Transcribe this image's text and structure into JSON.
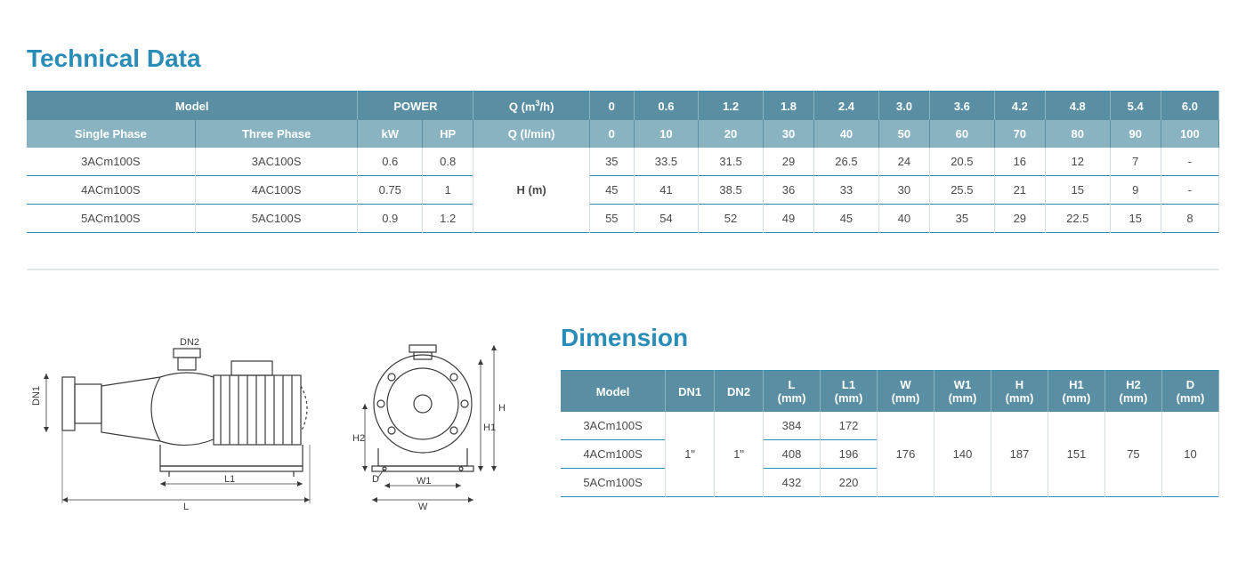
{
  "colors": {
    "title": "#2a8db8",
    "header_dark_bg": "#5a8fa3",
    "header_light_bg": "#8ab3c2",
    "row_border": "#2a8db8",
    "cell_border_v": "#cfdce2",
    "divider": "#b8c4c9",
    "text": "#4a4a4a",
    "drawing_stroke": "#3a3a3a"
  },
  "technical": {
    "title": "Technical Data",
    "header1": {
      "model": "Model",
      "power": "POWER",
      "q_m3h": "Q (m³/h)",
      "q_m3h_vals": [
        "0",
        "0.6",
        "1.2",
        "1.8",
        "2.4",
        "3.0",
        "3.6",
        "4.2",
        "4.8",
        "5.4",
        "6.0"
      ]
    },
    "header2": {
      "single": "Single Phase",
      "three": "Three Phase",
      "kw": "kW",
      "hp": "HP",
      "q_lmin": "Q (l/min)",
      "q_lmin_vals": [
        "0",
        "10",
        "20",
        "30",
        "40",
        "50",
        "60",
        "70",
        "80",
        "90",
        "100"
      ]
    },
    "h_label": "H (m)",
    "rows": [
      {
        "sp": "3ACm100S",
        "tp": "3AC100S",
        "kw": "0.6",
        "hp": "0.8",
        "v": [
          "35",
          "33.5",
          "31.5",
          "29",
          "26.5",
          "24",
          "20.5",
          "16",
          "12",
          "7",
          "-"
        ]
      },
      {
        "sp": "4ACm100S",
        "tp": "4AC100S",
        "kw": "0.75",
        "hp": "1",
        "v": [
          "45",
          "41",
          "38.5",
          "36",
          "33",
          "30",
          "25.5",
          "21",
          "15",
          "9",
          "-"
        ]
      },
      {
        "sp": "5ACm100S",
        "tp": "5AC100S",
        "kw": "0.9",
        "hp": "1.2",
        "v": [
          "55",
          "54",
          "52",
          "49",
          "45",
          "40",
          "35",
          "29",
          "22.5",
          "15",
          "8"
        ]
      }
    ]
  },
  "dimension": {
    "title": "Dimension",
    "columns": [
      "Model",
      "DN1",
      "DN2",
      "L (mm)",
      "L1 (mm)",
      "W (mm)",
      "W1 (mm)",
      "H (mm)",
      "H1 (mm)",
      "H2 (mm)",
      "D (mm)"
    ],
    "rows": [
      {
        "model": "3ACm100S",
        "L": "384",
        "L1": "172"
      },
      {
        "model": "4ACm100S",
        "L": "408",
        "L1": "196"
      },
      {
        "model": "5ACm100S",
        "L": "432",
        "L1": "220"
      }
    ],
    "shared": {
      "DN1": "1\"",
      "DN2": "1\"",
      "W": "176",
      "W1": "140",
      "H": "187",
      "H1": "151",
      "H2": "75",
      "D": "10"
    },
    "labels": {
      "DN1": "DN1",
      "DN2": "DN2",
      "L": "L",
      "L1": "L1",
      "W": "W",
      "W1": "W1",
      "H": "H",
      "H1": "H1",
      "H2": "H2",
      "D": "D"
    }
  }
}
